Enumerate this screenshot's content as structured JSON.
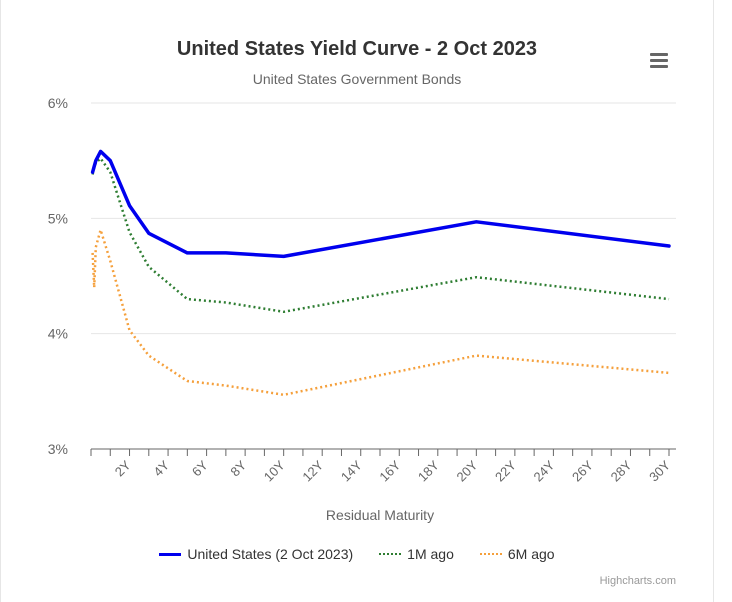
{
  "chart_data": {
    "type": "line",
    "title": "United States Yield Curve - 2 Oct 2023",
    "subtitle": "United States Government Bonds",
    "xlabel": "Residual Maturity",
    "ylabel": "",
    "x_unit": "years",
    "xlim": [
      0,
      30
    ],
    "ylim": [
      3,
      6
    ],
    "y_ticks": [
      "3%",
      "4%",
      "5%",
      "6%"
    ],
    "x_ticks": [
      "2Y",
      "4Y",
      "6Y",
      "8Y",
      "10Y",
      "12Y",
      "14Y",
      "16Y",
      "18Y",
      "20Y",
      "22Y",
      "24Y",
      "26Y",
      "28Y",
      "30Y"
    ],
    "grid": true,
    "legend_position": "bottom",
    "series": [
      {
        "name": "United States (2 Oct 2023)",
        "color": "#0000ee",
        "style": "solid",
        "x": [
          0.083,
          0.167,
          0.25,
          0.5,
          1,
          2,
          3,
          5,
          7,
          10,
          20,
          30
        ],
        "y": [
          5.4,
          5.45,
          5.5,
          5.58,
          5.5,
          5.11,
          4.87,
          4.7,
          4.7,
          4.67,
          4.97,
          4.76
        ]
      },
      {
        "name": "1M ago",
        "color": "#2e7d32",
        "style": "dotted",
        "x": [
          0.083,
          0.167,
          0.25,
          0.5,
          1,
          2,
          3,
          5,
          7,
          10,
          20,
          30
        ],
        "y": [
          5.38,
          5.44,
          5.48,
          5.52,
          5.4,
          4.88,
          4.58,
          4.3,
          4.27,
          4.19,
          4.49,
          4.3
        ]
      },
      {
        "name": "6M ago",
        "color": "#f5a03c",
        "style": "dotted",
        "x": [
          0.083,
          0.167,
          0.25,
          0.5,
          1,
          2,
          3,
          5,
          7,
          10,
          20,
          30
        ],
        "y": [
          4.7,
          4.4,
          4.75,
          4.9,
          4.63,
          4.03,
          3.81,
          3.59,
          3.55,
          3.47,
          3.81,
          3.66
        ]
      }
    ]
  },
  "credits": "Highcharts.com",
  "menu_icon": "hamburger-menu-icon"
}
